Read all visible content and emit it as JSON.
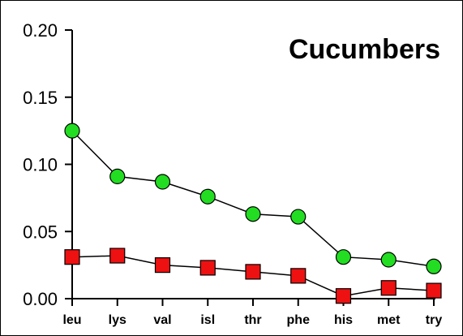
{
  "chart_data": {
    "type": "line",
    "title": "Cucumbers",
    "xlabel": "",
    "ylabel": "",
    "categories": [
      "leu",
      "lys",
      "val",
      "isl",
      "thr",
      "phe",
      "his",
      "met",
      "try"
    ],
    "ylim": [
      0,
      0.2
    ],
    "yticks": [
      "0.00",
      "0.05",
      "0.10",
      "0.15",
      "0.20"
    ],
    "grid": false,
    "series": [
      {
        "marker": "circle",
        "color": "#22dd22",
        "values": [
          0.125,
          0.091,
          0.087,
          0.076,
          0.063,
          0.061,
          0.031,
          0.029,
          0.024
        ]
      },
      {
        "marker": "square",
        "color": "#ee1111",
        "values": [
          0.031,
          0.032,
          0.025,
          0.023,
          0.02,
          0.017,
          0.002,
          0.008,
          0.006
        ]
      }
    ]
  }
}
